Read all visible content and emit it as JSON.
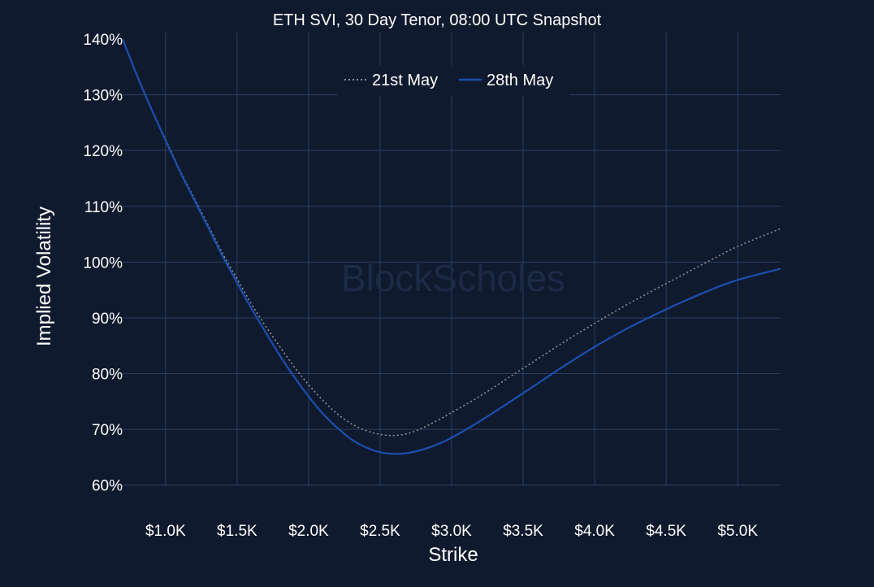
{
  "chart_data": {
    "type": "line",
    "title": "ETH SVI, 30 Day Tenor, 08:00 UTC Snapshot",
    "xlabel": "Strike",
    "ylabel": "Implied Volatility",
    "xlim": [
      700,
      5300
    ],
    "ylim": [
      55,
      140
    ],
    "x_ticks": [
      1000,
      1500,
      2000,
      2500,
      3000,
      3500,
      4000,
      4500,
      5000
    ],
    "x_tick_labels": [
      "$1.0K",
      "$1.5K",
      "$2.0K",
      "$2.5K",
      "$3.0K",
      "$3.5K",
      "$4.0K",
      "$4.5K",
      "$5.0K"
    ],
    "y_ticks": [
      60,
      70,
      80,
      90,
      100,
      110,
      120,
      130,
      140
    ],
    "y_tick_labels": [
      "60%",
      "70%",
      "80%",
      "90%",
      "100%",
      "110%",
      "120%",
      "130%",
      "140%"
    ],
    "grid": true,
    "legend_position": "top-center",
    "watermark": "BlockScholes",
    "series": [
      {
        "name": "21st May",
        "style": "dotted",
        "color": "#8a8f99",
        "x": [
          700,
          800,
          900,
          1000,
          1100,
          1200,
          1300,
          1400,
          1500,
          1600,
          1700,
          1800,
          1900,
          2000,
          2100,
          2200,
          2300,
          2400,
          2500,
          2600,
          2700,
          2800,
          2900,
          3000,
          3200,
          3400,
          3600,
          3800,
          4000,
          4200,
          4400,
          4600,
          4800,
          5000,
          5300
        ],
        "values": [
          140,
          133.5,
          127.5,
          122,
          116.5,
          111.5,
          106.5,
          101.5,
          97,
          92.5,
          88.5,
          84.8,
          81.2,
          78,
          75.2,
          72.8,
          71,
          69.8,
          69.1,
          68.9,
          69.3,
          70.3,
          71.6,
          73,
          76,
          79.3,
          82.6,
          85.9,
          89,
          92,
          94.8,
          97.5,
          100.2,
          102.8,
          106
        ]
      },
      {
        "name": "28th May",
        "style": "solid",
        "color": "#1a4fb0",
        "x": [
          700,
          800,
          900,
          1000,
          1100,
          1200,
          1300,
          1400,
          1500,
          1600,
          1700,
          1800,
          1900,
          2000,
          2100,
          2200,
          2300,
          2400,
          2500,
          2600,
          2700,
          2800,
          2900,
          3000,
          3200,
          3400,
          3600,
          3800,
          4000,
          4200,
          4400,
          4600,
          4800,
          5000,
          5300
        ],
        "values": [
          140,
          133.5,
          127.5,
          121.8,
          116.3,
          111.2,
          106.1,
          101,
          96.3,
          91.7,
          87.4,
          83.2,
          79.4,
          75.9,
          72.8,
          70.3,
          68.2,
          66.8,
          65.9,
          65.6,
          65.8,
          66.4,
          67.3,
          68.5,
          71.5,
          74.8,
          78.2,
          81.6,
          84.8,
          87.7,
          90.3,
          92.7,
          94.9,
          96.8,
          98.8
        ]
      }
    ]
  }
}
